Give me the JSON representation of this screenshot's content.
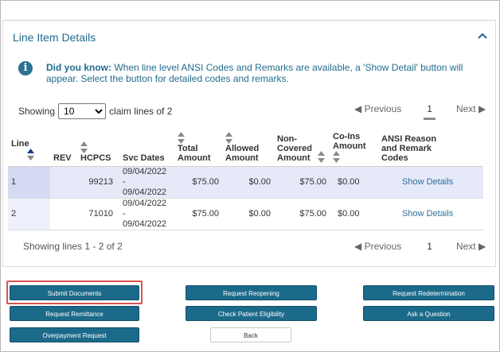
{
  "panel": {
    "title": "Line Item Details"
  },
  "info": {
    "bold": "Did you know:",
    "text": " When line level ANSI Codes and Remarks are available, a 'Show Detail' button will appear. Select the button for detailed codes and remarks."
  },
  "showing": {
    "prefix": "Showing",
    "selected": "10",
    "suffix": "claim lines of 2"
  },
  "pager": {
    "previous": "Previous",
    "page": "1",
    "next": "Next"
  },
  "table": {
    "headers": {
      "line": "Line",
      "rev": "REV",
      "hcpcs": "HCPCS",
      "svc": "Svc Dates",
      "total": "Total Amount",
      "allowed": "Allowed Amount",
      "noncovered": "Non-Covered Amount",
      "coins": "Co-Ins Amount",
      "ansi": "ANSI Reason and Remark Codes"
    },
    "rows": [
      {
        "line": "1",
        "rev": "",
        "hcpcs": "99213",
        "svc1": "09/04/2022 -",
        "svc2": "09/04/2022",
        "total": "$75.00",
        "allowed": "$0.00",
        "noncovered": "$75.00",
        "coins": "$0.00",
        "action": "Show Details"
      },
      {
        "line": "2",
        "rev": "",
        "hcpcs": "71010",
        "svc1": "09/04/2022 -",
        "svc2": "09/04/2022",
        "total": "$75.00",
        "allowed": "$0.00",
        "noncovered": "$75.00",
        "coins": "$0.00",
        "action": "Show Details"
      }
    ]
  },
  "footer": {
    "status": "Showing lines 1 - 2 of 2"
  },
  "buttons": {
    "submit_documents": "Submit Documents",
    "request_reopening": "Request Reopening",
    "request_redetermination": "Request Redetermination",
    "request_remittance": "Request Remittance",
    "check_eligibility": "Check Patient Eligibility",
    "ask_question": "Ask a Question",
    "overpayment_request": "Overpayment Request",
    "back": "Back"
  },
  "colors": {
    "accent": "#1c6a8a",
    "title": "#1f6b8f",
    "selected_row": "#e6e9f8",
    "highlight": "#d9534f"
  }
}
